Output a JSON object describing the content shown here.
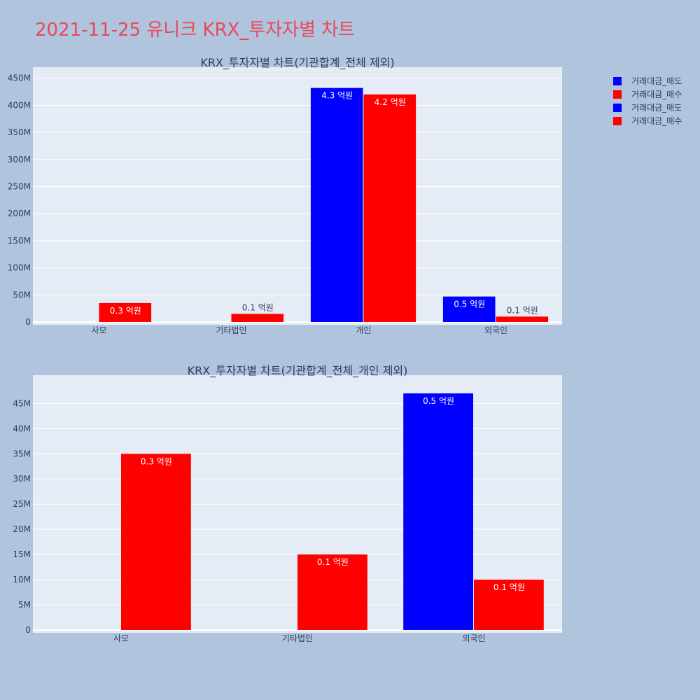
{
  "title": "2021-11-25 유니크 KRX_투자자별 차트",
  "colors": {
    "sell": "#0000ff",
    "buy": "#ff0000",
    "plot_bg": "#e5ecf6",
    "page_bg": "#b0c4de",
    "title": "#e8495a"
  },
  "legend": [
    {
      "label": "거래대금_매도",
      "color": "#0000ff"
    },
    {
      "label": "거래대금_매수",
      "color": "#ff0000"
    },
    {
      "label": "거래대금_매도",
      "color": "#0000ff"
    },
    {
      "label": "거래대금_매수",
      "color": "#ff0000"
    }
  ],
  "chart_data": [
    {
      "type": "bar",
      "title": "KRX_투자자별 차트(기관합계_전체 제외)",
      "categories": [
        "사모",
        "기타법인",
        "개인",
        "외국인"
      ],
      "series": [
        {
          "name": "거래대금_매도",
          "values": [
            0,
            0,
            432000000,
            47000000
          ],
          "labels": [
            "",
            "",
            "4.3 억원",
            "0.5 억원"
          ]
        },
        {
          "name": "거래대금_매수",
          "values": [
            35000000,
            15000000,
            420000000,
            10000000
          ],
          "labels": [
            "0.3 억원",
            "0.1 억원",
            "4.2 억원",
            "0.1 억원"
          ]
        }
      ],
      "ylim": [
        0,
        460000000
      ],
      "yticks": [
        0,
        50000000,
        100000000,
        150000000,
        200000000,
        250000000,
        300000000,
        350000000,
        400000000,
        450000000
      ],
      "ytick_labels": [
        "0",
        "50M",
        "100M",
        "150M",
        "200M",
        "250M",
        "300M",
        "350M",
        "400M",
        "450M"
      ],
      "grid": true
    },
    {
      "type": "bar",
      "title": "KRX_투자자별 차트(기관합계_전체_개인 제외)",
      "categories": [
        "사모",
        "기타법인",
        "외국인"
      ],
      "series": [
        {
          "name": "거래대금_매도",
          "values": [
            0,
            0,
            47000000
          ],
          "labels": [
            "",
            "",
            "0.5 억원"
          ]
        },
        {
          "name": "거래대금_매수",
          "values": [
            35000000,
            15000000,
            10000000
          ],
          "labels": [
            "0.3 억원",
            "0.1 억원",
            "0.1 억원"
          ]
        }
      ],
      "ylim": [
        0,
        49500000
      ],
      "yticks": [
        0,
        5000000,
        10000000,
        15000000,
        20000000,
        25000000,
        30000000,
        35000000,
        40000000,
        45000000
      ],
      "ytick_labels": [
        "0",
        "5M",
        "10M",
        "15M",
        "20M",
        "25M",
        "30M",
        "35M",
        "40M",
        "45M"
      ],
      "grid": true
    }
  ]
}
